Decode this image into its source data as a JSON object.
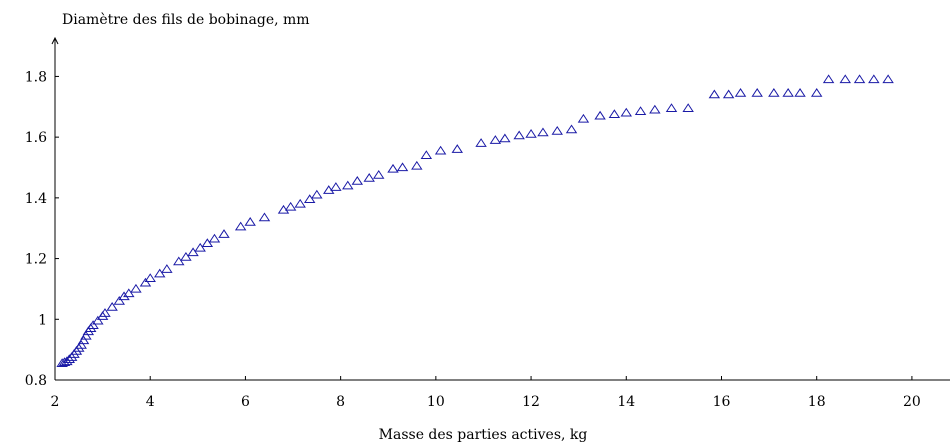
{
  "chart_data": {
    "type": "scatter",
    "xlabel": "Masse des parties actives, kg",
    "ylabel": "Diamètre des fils de bobinage, mm",
    "xlim": [
      2,
      20.8
    ],
    "ylim": [
      0.8,
      1.92
    ],
    "xticks": [
      2,
      4,
      6,
      8,
      10,
      12,
      14,
      16,
      18,
      20
    ],
    "yticks": [
      0.8,
      1,
      1.2,
      1.4,
      1.6,
      1.8
    ],
    "grid": false,
    "marker": "triangle-open",
    "color": "#1a1aa6",
    "series": [
      {
        "points": [
          [
            2.15,
            0.855
          ],
          [
            2.2,
            0.858
          ],
          [
            2.25,
            0.861
          ],
          [
            2.3,
            0.868
          ],
          [
            2.35,
            0.875
          ],
          [
            2.4,
            0.885
          ],
          [
            2.45,
            0.895
          ],
          [
            2.5,
            0.905
          ],
          [
            2.55,
            0.915
          ],
          [
            2.6,
            0.93
          ],
          [
            2.65,
            0.945
          ],
          [
            2.7,
            0.96
          ],
          [
            2.75,
            0.97
          ],
          [
            2.8,
            0.98
          ],
          [
            2.9,
            0.995
          ],
          [
            3.0,
            1.01
          ],
          [
            3.05,
            1.02
          ],
          [
            3.2,
            1.04
          ],
          [
            3.35,
            1.06
          ],
          [
            3.45,
            1.075
          ],
          [
            3.55,
            1.085
          ],
          [
            3.7,
            1.1
          ],
          [
            3.9,
            1.12
          ],
          [
            4.0,
            1.135
          ],
          [
            4.2,
            1.15
          ],
          [
            4.35,
            1.165
          ],
          [
            4.6,
            1.19
          ],
          [
            4.75,
            1.205
          ],
          [
            4.9,
            1.22
          ],
          [
            5.05,
            1.235
          ],
          [
            5.2,
            1.25
          ],
          [
            5.35,
            1.265
          ],
          [
            5.55,
            1.28
          ],
          [
            5.9,
            1.305
          ],
          [
            6.1,
            1.32
          ],
          [
            6.4,
            1.335
          ],
          [
            6.8,
            1.36
          ],
          [
            6.95,
            1.37
          ],
          [
            7.15,
            1.38
          ],
          [
            7.35,
            1.395
          ],
          [
            7.5,
            1.41
          ],
          [
            7.75,
            1.425
          ],
          [
            7.9,
            1.435
          ],
          [
            8.15,
            1.44
          ],
          [
            8.35,
            1.455
          ],
          [
            8.6,
            1.465
          ],
          [
            8.8,
            1.475
          ],
          [
            9.1,
            1.495
          ],
          [
            9.3,
            1.5
          ],
          [
            9.6,
            1.505
          ],
          [
            9.8,
            1.54
          ],
          [
            10.1,
            1.555
          ],
          [
            10.45,
            1.56
          ],
          [
            10.95,
            1.58
          ],
          [
            11.25,
            1.59
          ],
          [
            11.45,
            1.595
          ],
          [
            11.75,
            1.605
          ],
          [
            12.0,
            1.61
          ],
          [
            12.25,
            1.615
          ],
          [
            12.55,
            1.62
          ],
          [
            12.85,
            1.625
          ],
          [
            13.1,
            1.66
          ],
          [
            13.45,
            1.67
          ],
          [
            13.75,
            1.675
          ],
          [
            14.0,
            1.68
          ],
          [
            14.3,
            1.685
          ],
          [
            14.6,
            1.69
          ],
          [
            14.95,
            1.695
          ],
          [
            15.3,
            1.695
          ],
          [
            15.85,
            1.74
          ],
          [
            16.15,
            1.74
          ],
          [
            16.4,
            1.745
          ],
          [
            16.75,
            1.745
          ],
          [
            17.1,
            1.745
          ],
          [
            17.4,
            1.745
          ],
          [
            17.65,
            1.745
          ],
          [
            18.0,
            1.745
          ],
          [
            18.25,
            1.79
          ],
          [
            18.6,
            1.79
          ],
          [
            18.9,
            1.79
          ],
          [
            19.2,
            1.79
          ],
          [
            19.5,
            1.79
          ]
        ]
      }
    ]
  }
}
